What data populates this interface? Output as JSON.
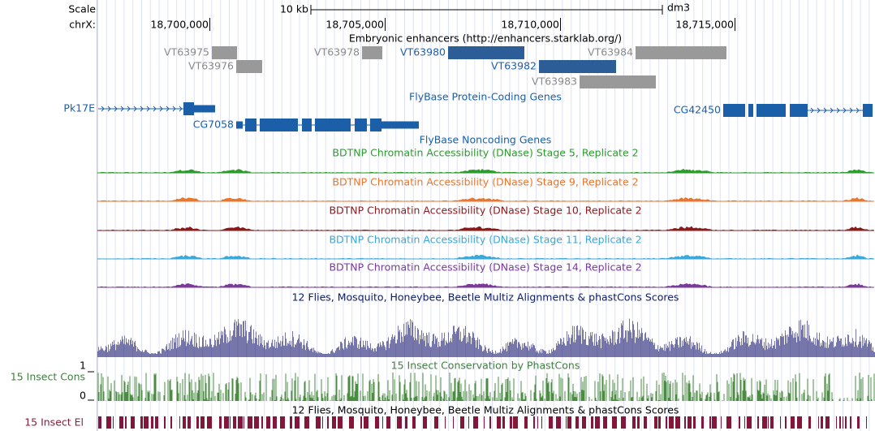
{
  "ruler": {
    "scale_label": "Scale",
    "scale_bar_label": "10 kb",
    "assembly": "dm3",
    "chrom_label": "chrX:",
    "positions": [
      "18,700,000",
      "18,705,000",
      "18,710,000",
      "18,715,000"
    ]
  },
  "tracks": {
    "enhancers": {
      "title": "Embryonic enhancers (http://enhancers.starklab.org/)",
      "features": [
        "VT63975",
        "VT63976",
        "VT63978",
        "VT63980",
        "VT63982",
        "VT63983",
        "VT63984"
      ]
    },
    "genes": {
      "title": "FlyBase Protein-Coding Genes",
      "genes": [
        "Pk17E",
        "CG7058",
        "CG42450"
      ]
    },
    "noncoding": {
      "title": "FlyBase Noncoding Genes"
    },
    "dnase": [
      {
        "title": "BDTNP Chromatin Accessibility (DNase) Stage 5, Replicate 2"
      },
      {
        "title": "BDTNP Chromatin Accessibility (DNase) Stage 9, Replicate 2"
      },
      {
        "title": "BDTNP Chromatin Accessibility (DNase) Stage 10, Replicate 2"
      },
      {
        "title": "BDTNP Chromatin Accessibility (DNase) Stage 11, Replicate 2"
      },
      {
        "title": "BDTNP Chromatin Accessibility (DNase) Stage 14, Replicate 2"
      }
    ],
    "multiz": {
      "title": "12 Flies, Mosquito, Honeybee, Beetle Multiz Alignments & phastCons Scores"
    },
    "phastcons": {
      "title": "15 Insect Conservation by PhastCons",
      "side_label": "15 Insect Cons",
      "axis_max": 1,
      "axis_min": 0
    },
    "elements": {
      "title": "12 Flies, Mosquito, Honeybee, Beetle Multiz Alignments & phastCons Scores",
      "side_label": "15 Insect El"
    }
  }
}
